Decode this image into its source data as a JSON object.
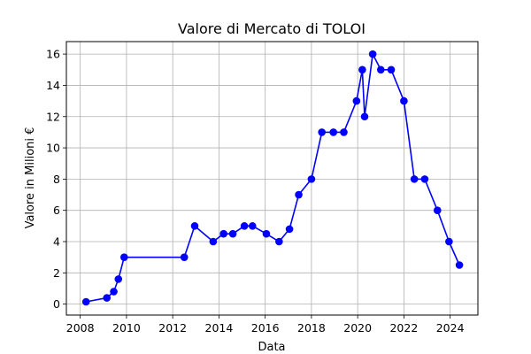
{
  "chart_data": {
    "type": "line",
    "title": "Valore di Mercato di TOLOI",
    "xlabel": "Data",
    "ylabel": "Valore in Milioni €",
    "x_ticks": [
      2008,
      2010,
      2012,
      2014,
      2016,
      2018,
      2020,
      2022,
      2024
    ],
    "y_ticks": [
      0,
      2,
      4,
      6,
      8,
      10,
      12,
      14,
      16
    ],
    "xlim": [
      2007.4,
      2025.2
    ],
    "ylim": [
      -0.7,
      16.8
    ],
    "grid": true,
    "colors": {
      "series": "#0000ff",
      "grid": "#b0b0b0"
    },
    "series": [
      {
        "x": [
          2008.25,
          2009.15,
          2009.45,
          2009.65,
          2009.9,
          2012.5,
          2012.95,
          2013.75,
          2014.2,
          2014.6,
          2015.1,
          2015.45,
          2016.05,
          2016.6,
          2017.05,
          2017.45,
          2018.0,
          2018.45,
          2018.95,
          2019.4,
          2019.95,
          2020.2,
          2020.3,
          2020.65,
          2021.0,
          2021.45,
          2022.0,
          2022.45,
          2022.9,
          2023.45,
          2023.95,
          2024.4
        ],
        "y": [
          0.15,
          0.4,
          0.8,
          1.6,
          3.0,
          3.0,
          5.0,
          4.0,
          4.5,
          4.5,
          5.0,
          5.0,
          4.5,
          4.0,
          4.8,
          7.0,
          8.0,
          11.0,
          11.0,
          11.0,
          13.0,
          15.0,
          12.0,
          16.0,
          15.0,
          15.0,
          13.0,
          8.0,
          8.0,
          6.0,
          4.0,
          2.5
        ]
      }
    ]
  }
}
